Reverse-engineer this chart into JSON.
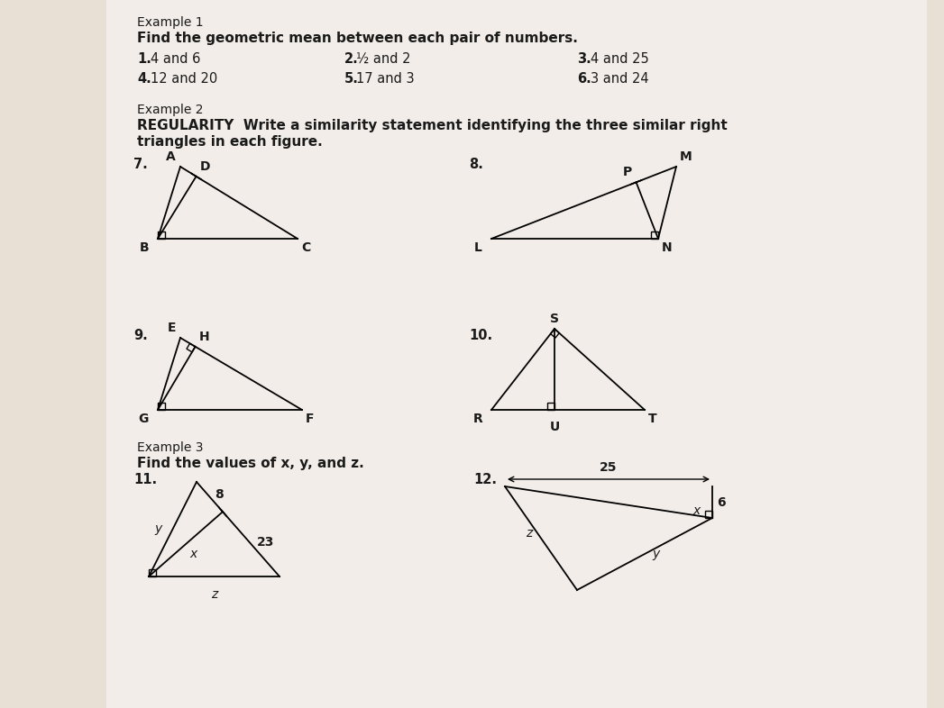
{
  "bg_color": "#e8e0d5",
  "page_color": "#f2ede8",
  "text_color": "#1a1a1a",
  "title1": "Example 1",
  "subtitle1_bold": "Find the geometric mean between each pair of numbers.",
  "p1": "1.  4 and 6",
  "p2_num": "2.",
  "p2_frac": "½",
  "p2_rest": " and 2",
  "p3": "3.  4 and 25",
  "p4": "4.  12 and 20",
  "p5": "5.  17 and 3",
  "p6": "6.  3 and 24",
  "title2": "Example 2",
  "subtitle2a": "REGULARITY  Write a similarity statement identifying the three similar right",
  "subtitle2b": "triangles in each figure.",
  "title3": "Example 3",
  "subtitle3": "Find the values of x, y, and z."
}
